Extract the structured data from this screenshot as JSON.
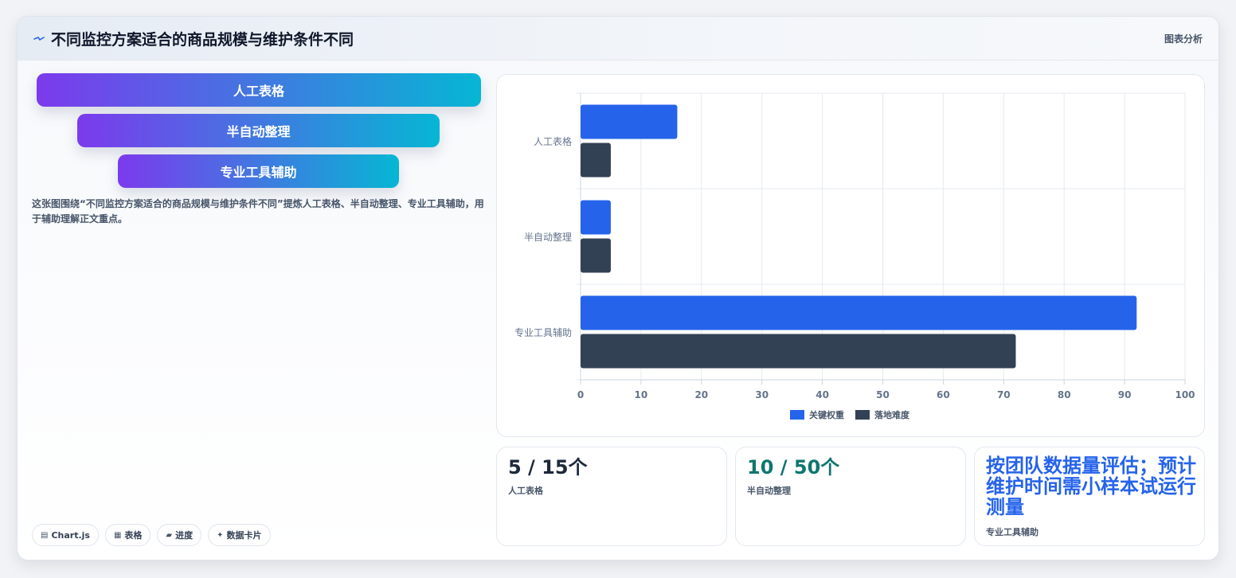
{
  "header": {
    "title": "不同监控方案适合的商品规模与维护条件不同",
    "tag": "图表分析",
    "icon": "sparkle-icon"
  },
  "funnel": {
    "items": [
      "人工表格",
      "半自动整理",
      "专业工具辅助"
    ]
  },
  "description": "这张图围绕“不同监控方案适合的商品规模与维护条件不同”提炼人工表格、半自动整理、专业工具辅助，用于辅助理解正文重点。",
  "chips": [
    {
      "icon": "chart-icon",
      "glyph": "▤",
      "label": "Chart.js"
    },
    {
      "icon": "table-icon",
      "glyph": "▦",
      "label": "表格"
    },
    {
      "icon": "progress-icon",
      "glyph": "▰",
      "label": "进度"
    },
    {
      "icon": "sparkle-icon",
      "glyph": "✦",
      "label": "数据卡片"
    }
  ],
  "stats": [
    {
      "value": "5 / 15个",
      "label": "人工表格",
      "color": "#1e293b"
    },
    {
      "value": "10 / 50个",
      "label": "半自动整理",
      "color": "#0f766e"
    },
    {
      "value": "按团队数据量评估；预计维护时间需小样本试运行测量",
      "label": "专业工具辅助",
      "color": "#2563eb"
    }
  ],
  "chart_data": {
    "type": "bar",
    "orientation": "horizontal",
    "categories": [
      "人工表格",
      "半自动整理",
      "专业工具辅助"
    ],
    "series": [
      {
        "name": "关键权重",
        "values": [
          16,
          5,
          92
        ],
        "color": "#2563eb"
      },
      {
        "name": "落地难度",
        "values": [
          5,
          5,
          72
        ],
        "color": "#334155"
      }
    ],
    "xlim": [
      0,
      100
    ],
    "xticks": [
      "0",
      "10",
      "20",
      "30",
      "40",
      "50",
      "60",
      "70",
      "80",
      "90",
      "100"
    ],
    "grid": true,
    "legend": "bottom"
  }
}
